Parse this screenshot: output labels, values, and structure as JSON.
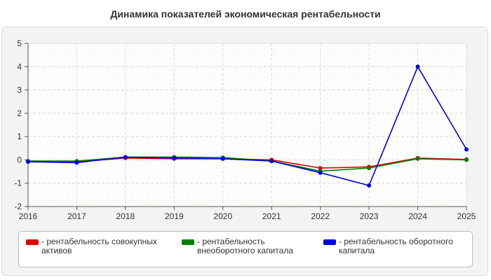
{
  "chart_data": {
    "type": "line",
    "title": "Динамика показателей экономическая рентабельности",
    "x": [
      "2016",
      "2017",
      "2018",
      "2019",
      "2020",
      "2021",
      "2022",
      "2023",
      "2024",
      "2025"
    ],
    "ylim": [
      -2,
      5
    ],
    "yticks": [
      "-2",
      "-1",
      "0",
      "1",
      "2",
      "3",
      "4",
      "5"
    ],
    "grid": true,
    "legend_position": "bottom",
    "series": [
      {
        "name": "- рентабельность совокупных активов",
        "color": "#e00000",
        "values": [
          -0.05,
          -0.08,
          0.08,
          0.05,
          0.05,
          0.0,
          -0.35,
          -0.3,
          0.08,
          0.02
        ]
      },
      {
        "name": "- рентабельность внеоборотного капитала",
        "color": "#008000",
        "values": [
          -0.05,
          -0.05,
          0.12,
          0.12,
          0.1,
          -0.05,
          -0.48,
          -0.35,
          0.05,
          0.0
        ]
      },
      {
        "name": "- рентабельность оборотного капитала",
        "color": "#0000dd",
        "values": [
          -0.08,
          -0.12,
          0.12,
          0.08,
          0.05,
          -0.05,
          -0.55,
          -1.1,
          4.0,
          0.45
        ]
      }
    ]
  }
}
